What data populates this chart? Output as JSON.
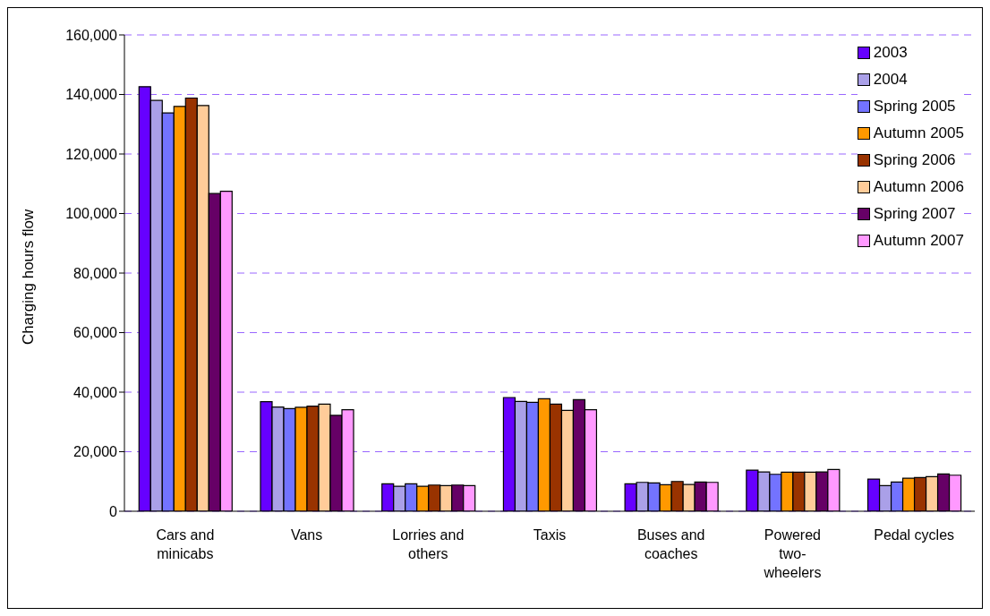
{
  "chart_data": {
    "type": "bar",
    "ylabel": "Charging hours flow",
    "categories": [
      "Cars and minicabs",
      "Vans",
      "Lorries and others",
      "Taxis",
      "Buses and coaches",
      "Powered two-wheelers",
      "Pedal cycles"
    ],
    "series": [
      {
        "name": "2003",
        "color": "#6600ff",
        "values": [
          142600,
          36800,
          9200,
          38200,
          9200,
          13800,
          10800
        ]
      },
      {
        "name": "2004",
        "color": "#aaa0e8",
        "values": [
          138000,
          35000,
          8400,
          36900,
          9700,
          13200,
          8600
        ]
      },
      {
        "name": "Spring 2005",
        "color": "#7373ff",
        "values": [
          133800,
          34500,
          9200,
          36600,
          9500,
          12400,
          9800
        ]
      },
      {
        "name": "Autumn 2005",
        "color": "#ff9900",
        "values": [
          136000,
          34900,
          8400,
          37800,
          8900,
          13100,
          11100
        ]
      },
      {
        "name": "Spring 2006",
        "color": "#993300",
        "values": [
          138800,
          35300,
          8800,
          36000,
          10000,
          13100,
          11300
        ]
      },
      {
        "name": "Autumn 2006",
        "color": "#ffcc99",
        "values": [
          136300,
          36000,
          8600,
          33900,
          9000,
          13100,
          11600
        ]
      },
      {
        "name": "Spring 2007",
        "color": "#660066",
        "values": [
          106700,
          32200,
          8800,
          37500,
          9800,
          13200,
          12500
        ]
      },
      {
        "name": "Autumn 2007",
        "color": "#ff99ff",
        "values": [
          107500,
          34100,
          8600,
          34100,
          9700,
          14000,
          12100
        ]
      }
    ],
    "ylim": [
      0,
      160000
    ],
    "yticks": [
      0,
      {
        "value": 20000,
        "label": "20,000"
      },
      {
        "value": 40000,
        "label": "40,000"
      },
      {
        "value": 60000,
        "label": "60,000"
      },
      {
        "value": 80000,
        "label": "80,000"
      },
      {
        "value": 100000,
        "label": "100,000"
      },
      {
        "value": 120000,
        "label": "120,000"
      },
      {
        "value": 140000,
        "label": "140,000"
      },
      {
        "value": 160000,
        "label": "160,000"
      }
    ],
    "grid": "y",
    "legend": "top right"
  }
}
